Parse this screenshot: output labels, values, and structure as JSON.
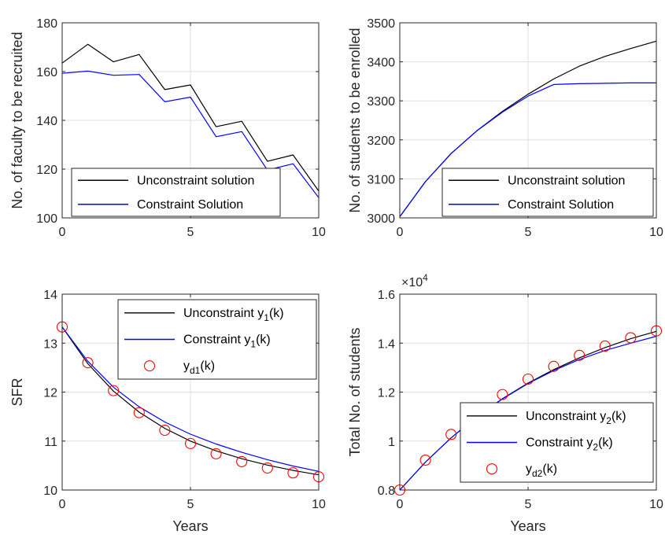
{
  "chart_data": [
    {
      "type": "line",
      "title": "",
      "xlabel": "",
      "ylabel": "No. of faculty to be recruited",
      "xlim": [
        0,
        10
      ],
      "ylim": [
        100,
        180
      ],
      "xticks": [
        "0",
        "5",
        "10"
      ],
      "yticks": [
        "100",
        "120",
        "140",
        "160",
        "180"
      ],
      "grid": true,
      "legend_position": "bottom-left",
      "x": [
        0,
        1,
        2,
        3,
        4,
        5,
        6,
        7,
        8,
        9,
        10
      ],
      "series": [
        {
          "name": "Unconstraint solution",
          "color": "#000000",
          "values": [
            163.5,
            171.2,
            164.0,
            167.0,
            152.6,
            154.5,
            137.4,
            139.6,
            123.2,
            125.8,
            111.0
          ]
        },
        {
          "name": "Constraint Solution",
          "color": "#0000ff",
          "values": [
            159.3,
            160.2,
            158.5,
            158.8,
            147.6,
            149.5,
            133.3,
            135.4,
            119.6,
            122.2,
            108.3
          ]
        }
      ]
    },
    {
      "type": "line",
      "title": "",
      "xlabel": "",
      "ylabel": "No. of students to be enrolled",
      "xlim": [
        0,
        10
      ],
      "ylim": [
        3000,
        3500
      ],
      "xticks": [
        "0",
        "5",
        "10"
      ],
      "yticks": [
        "3000",
        "3100",
        "3200",
        "3300",
        "3400",
        "3500"
      ],
      "grid": true,
      "legend_position": "bottom-right",
      "x": [
        0,
        1,
        2,
        3,
        4,
        5,
        6,
        7,
        8,
        9,
        10
      ],
      "series": [
        {
          "name": "Unconstraint solution",
          "color": "#000000",
          "values": [
            3003,
            3093,
            3165,
            3223,
            3273,
            3317,
            3356,
            3389,
            3414,
            3434,
            3453
          ]
        },
        {
          "name": "Constraint Solution",
          "color": "#0000ff",
          "values": [
            3003,
            3093,
            3165,
            3223,
            3271,
            3312,
            3342,
            3344,
            3345,
            3346,
            3346
          ]
        }
      ]
    },
    {
      "type": "line",
      "title": "",
      "xlabel": "Years",
      "ylabel": "SFR",
      "xlim": [
        0,
        10
      ],
      "ylim": [
        10,
        14
      ],
      "xticks": [
        "0",
        "5",
        "10"
      ],
      "yticks": [
        "10",
        "11",
        "12",
        "13",
        "14"
      ],
      "grid": true,
      "legend_position": "top-right",
      "x": [
        0,
        1,
        2,
        3,
        4,
        5,
        6,
        7,
        8,
        9,
        10
      ],
      "series": [
        {
          "name": "Unconstraint y",
          "sub": "1",
          "suffix": "(k)",
          "color": "#000000",
          "kind": "line",
          "values": [
            13.33,
            12.58,
            12.02,
            11.59,
            11.26,
            11.0,
            10.8,
            10.64,
            10.51,
            10.4,
            10.31
          ]
        },
        {
          "name": "Constraint y",
          "sub": "1",
          "suffix": "(k)",
          "color": "#0000ff",
          "kind": "line",
          "values": [
            13.33,
            12.63,
            12.1,
            11.7,
            11.39,
            11.14,
            10.94,
            10.77,
            10.62,
            10.49,
            10.38
          ]
        },
        {
          "name": "y",
          "sub": "d1",
          "suffix": "(k)",
          "color": "#ff0000",
          "kind": "marker",
          "values": [
            13.33,
            12.6,
            12.03,
            11.58,
            11.22,
            10.95,
            10.74,
            10.58,
            10.45,
            10.35,
            10.27
          ]
        }
      ]
    },
    {
      "type": "line",
      "title": "",
      "xlabel": "Years",
      "ylabel": "Total No. of students",
      "xlim": [
        0,
        10
      ],
      "ylim": [
        0.8,
        1.6
      ],
      "xticks": [
        "0",
        "5",
        "10"
      ],
      "yticks": [
        "0.8",
        "1",
        "1.2",
        "1.4",
        "1.6"
      ],
      "multiplier": "×10",
      "multiplier_exp": "4",
      "grid": true,
      "legend_position": "bottom-right",
      "x": [
        0,
        1,
        2,
        3,
        4,
        5,
        6,
        7,
        8,
        9,
        10
      ],
      "series": [
        {
          "name": "Unconstraint y",
          "sub": "2",
          "suffix": "(k)",
          "color": "#000000",
          "kind": "line",
          "values": [
            0.8,
            0.914,
            1.013,
            1.099,
            1.173,
            1.237,
            1.292,
            1.34,
            1.382,
            1.418,
            1.448
          ]
        },
        {
          "name": "Constraint y",
          "sub": "2",
          "suffix": "(k)",
          "color": "#0000ff",
          "kind": "line",
          "values": [
            0.8,
            0.914,
            1.013,
            1.099,
            1.172,
            1.235,
            1.288,
            1.333,
            1.37,
            1.4,
            1.428
          ]
        },
        {
          "name": "y",
          "sub": "d2",
          "suffix": "(k)",
          "color": "#ff0000",
          "kind": "marker",
          "values": [
            0.8,
            0.922,
            1.027,
            1.105,
            1.19,
            1.253,
            1.305,
            1.35,
            1.388,
            1.422,
            1.45
          ]
        }
      ]
    }
  ]
}
